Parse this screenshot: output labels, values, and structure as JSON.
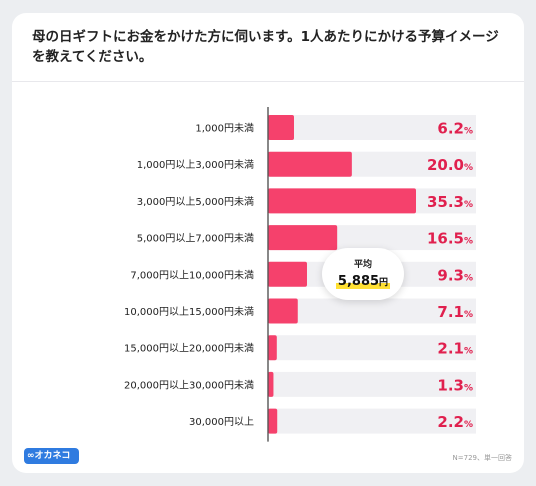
{
  "title": "母の日ギフトにお金をかけた方に伺います。1人あたりにかける予算イメージを教えてください。",
  "chart_data": {
    "type": "bar",
    "orientation": "horizontal",
    "categories": [
      "1,000円未満",
      "1,000円以上3,000円未満",
      "3,000円以上5,000円未満",
      "5,000円以上7,000円未満",
      "7,000円以上10,000円未満",
      "10,000円以上15,000円未満",
      "15,000円以上20,000円未満",
      "20,000円以上30,000円未満",
      "30,000円以上"
    ],
    "values": [
      6.2,
      20.0,
      35.3,
      16.5,
      9.3,
      7.1,
      2.1,
      1.3,
      2.2
    ],
    "value_labels": [
      "6.2",
      "20.0",
      "35.3",
      "16.5",
      "9.3",
      "7.1",
      "2.1",
      "1.3",
      "2.2"
    ],
    "unit": "%",
    "xlim": [
      0,
      35.3
    ],
    "bar_color": "#f5416c",
    "track_color": "#f0f0f3",
    "label_color": "#e0204e",
    "average": {
      "label": "平均",
      "value": "5,885",
      "unit": "円"
    }
  },
  "footer": {
    "logo": "∞オカネコ",
    "note": "N=729、単一回答"
  }
}
